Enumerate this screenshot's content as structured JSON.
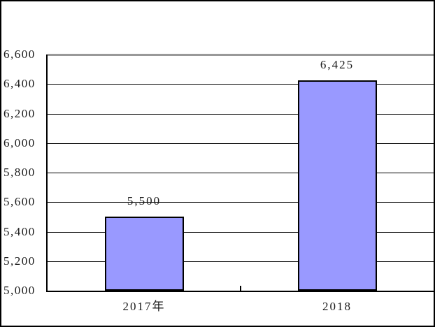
{
  "chart_data": {
    "type": "bar",
    "title": "",
    "xlabel": "",
    "ylabel": "",
    "categories": [
      "2017年",
      "2018"
    ],
    "values": [
      5500,
      6425
    ],
    "value_labels": [
      "5,500",
      "6,425"
    ],
    "y_ticks": [
      5000,
      5200,
      5400,
      5600,
      5800,
      6000,
      6200,
      6400,
      6600
    ],
    "y_tick_labels": [
      "5,000",
      "5,200",
      "5,400",
      "5,600",
      "5,800",
      "6,000",
      "6,200",
      "6,400",
      "6,600"
    ],
    "ylim": [
      5000,
      6600
    ],
    "y_tick_step": 200,
    "grid": true,
    "legend": false,
    "colors": {
      "bar_fill": "#9999FF",
      "bar_border": "#000000",
      "gridline": "#000000",
      "top_gridline": "#999999",
      "axis": "#000000",
      "text": "#1a1a1a",
      "chart_border": "#000000",
      "background": "#FFFFFF"
    }
  }
}
